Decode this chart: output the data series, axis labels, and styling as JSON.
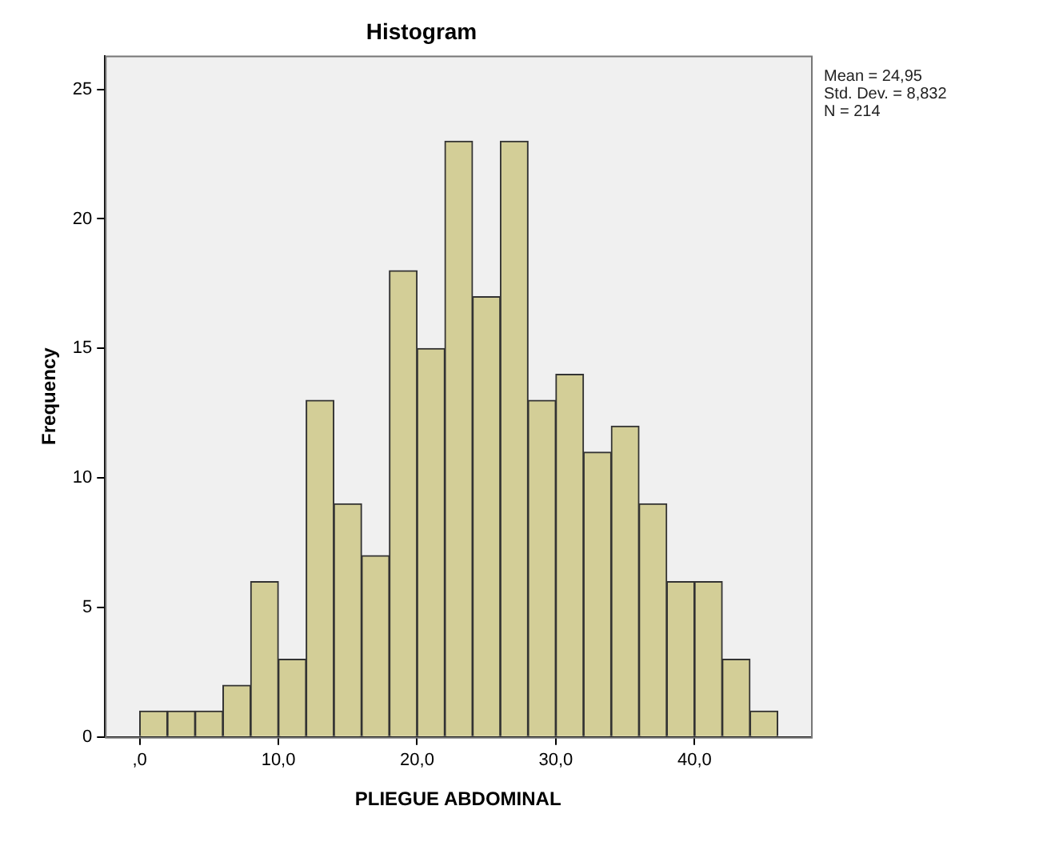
{
  "chart_data": {
    "type": "histogram",
    "title": "Histogram",
    "xlabel": "PLIEGUE ABDOMINAL",
    "ylabel": "Frequency",
    "bins": [
      0,
      2,
      4,
      6,
      8,
      10,
      12,
      14,
      16,
      18,
      20,
      22,
      24,
      26,
      28,
      30,
      32,
      34,
      36,
      38,
      40,
      42,
      44,
      46
    ],
    "values": [
      1,
      1,
      1,
      2,
      6,
      3,
      13,
      9,
      7,
      18,
      15,
      23,
      17,
      23,
      13,
      14,
      11,
      12,
      9,
      6,
      6,
      3,
      1
    ],
    "color": "#d3ce97",
    "xlim": [
      -2.5,
      48.4
    ],
    "xticks": [
      {
        "value": 0,
        "label": ",0"
      },
      {
        "value": 10,
        "label": "10,0"
      },
      {
        "value": 20,
        "label": "20,0"
      },
      {
        "value": 30,
        "label": "30,0"
      },
      {
        "value": 40,
        "label": "40,0"
      }
    ],
    "ylim": [
      0,
      26.3
    ],
    "yticks": [
      0,
      5,
      10,
      15,
      20,
      25
    ],
    "grid": false,
    "legend": false,
    "annotations": [
      "Mean = 24,95\nStd. Dev. = 8,832\nN = 214"
    ]
  }
}
